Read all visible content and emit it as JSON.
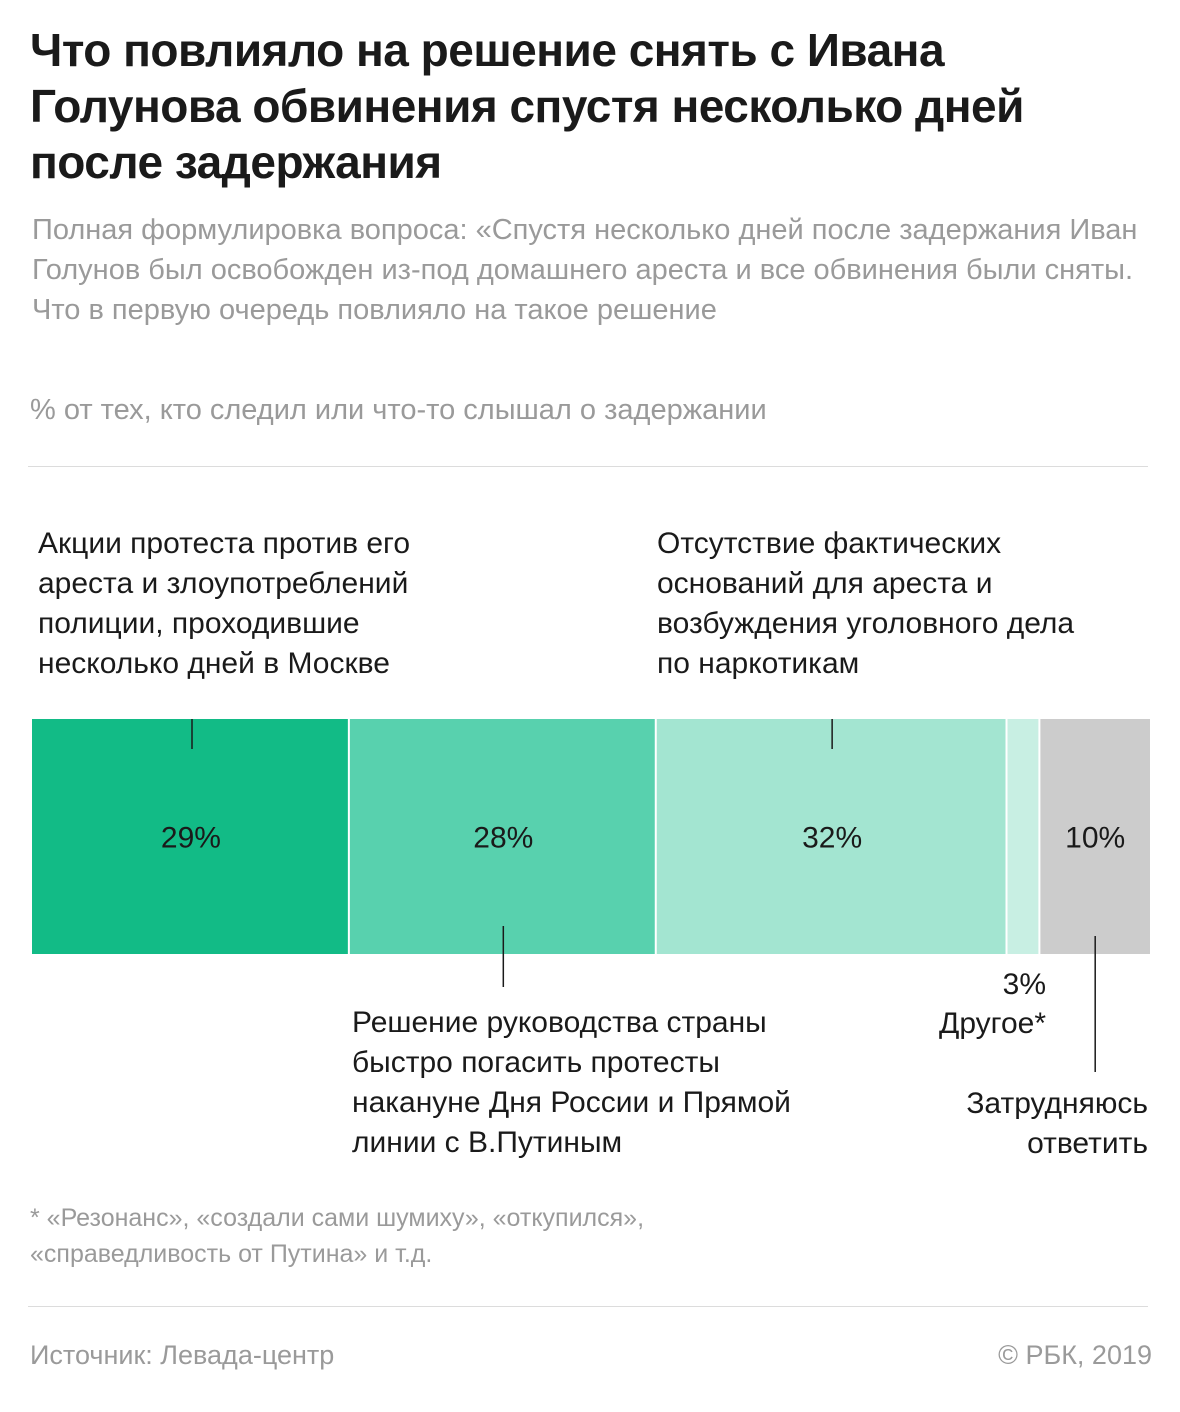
{
  "title": "Что повлияло на решение снять с Ивана Голунова обвинения спустя несколько дней после задержания",
  "subtitle": "Полная формулировка вопроса: «Спустя несколько дней после задержания Иван Голунов был освобожден из-под домашнего ареста и все обвинения были сняты. Что в первую очередь повлияло на такое решение",
  "unit_note": "% от тех, кто следил или что-то слышал о задержании",
  "chart_data": {
    "type": "bar",
    "stacked": true,
    "orientation": "horizontal",
    "unit": "%",
    "categories": [
      "Акции протеста против его ареста и злоупотреблений полиции, проходившие несколько дней в Москве",
      "Решение руководства страны быстро погасить протесты накануне Дня России и Прямой линии с В.Путиным",
      "Отсутствие фактических оснований для ареста и возбуждения уголовного дела по наркотикам",
      "Другое*",
      "Затрудняюсь ответить"
    ],
    "values": [
      29,
      28,
      32,
      3,
      10
    ],
    "value_labels": [
      "29%",
      "28%",
      "32%",
      "3%",
      "10%"
    ],
    "colors": [
      "#12bb86",
      "#58d1ae",
      "#a3e5d1",
      "#c8efe3",
      "#cccccc"
    ],
    "label_positions": [
      "top",
      "bottom",
      "top",
      "bottom",
      "bottom"
    ]
  },
  "labels": {
    "protests": "Акции протеста против его ареста и злоупотреблений полиции, проходившие несколько дней в Москве",
    "leadership": "Решение руководства страны быстро погасить протесты накануне Дня России и Прямой линии с В.Путиным",
    "no_grounds": "Отсутствие фактических оснований для ареста и возбуждения уголовного дела по наркотикам",
    "other_value": "3%",
    "other": "Другое*",
    "hard_to_say": "Затрудняюсь ответить"
  },
  "footnote": "* «Резонанс», «создали сами шумиху», «откупился», «справедливость от Путина» и т.д.",
  "source": "Источник: Левада-центр",
  "copyright": "© РБК, 2019"
}
